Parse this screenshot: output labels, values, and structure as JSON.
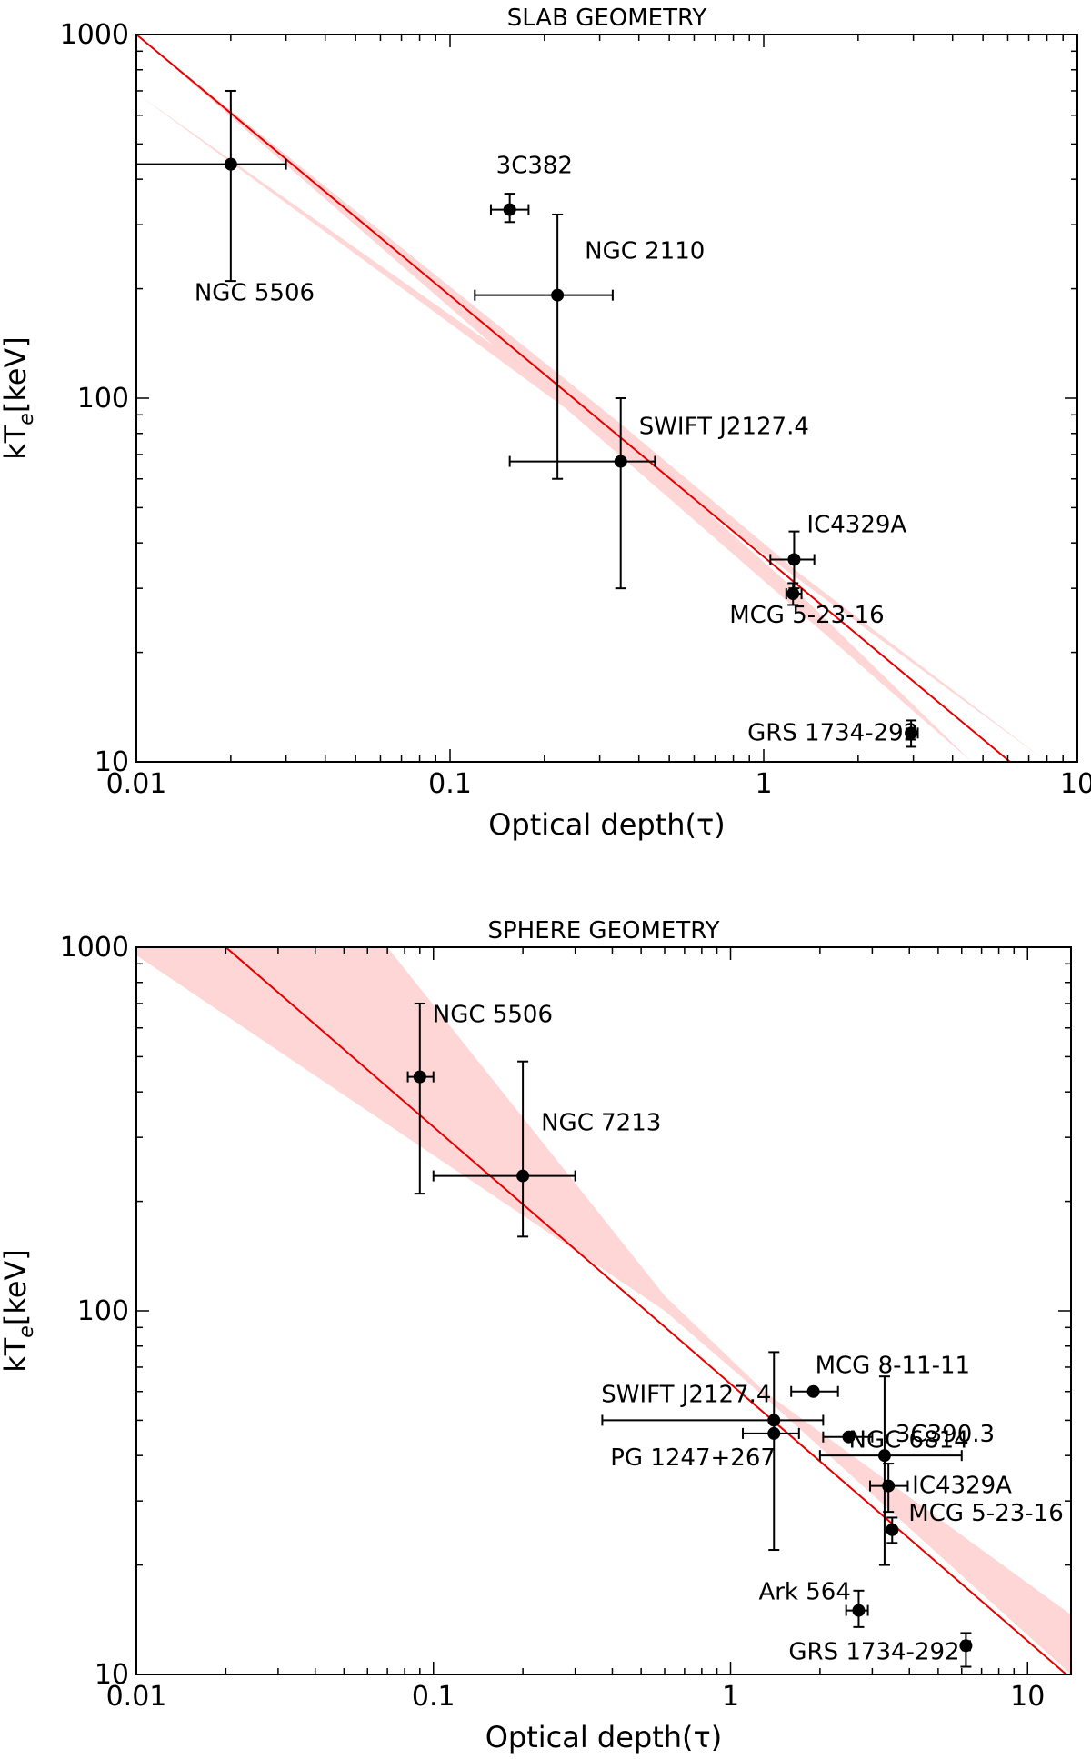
{
  "chart_data": [
    {
      "type": "scatter",
      "title": "SLAB GEOMETRY",
      "xlabel": "Optical depth(τ)",
      "ylabel": "kT_e[keV]",
      "xscale": "log",
      "yscale": "log",
      "xlim": [
        0.01,
        10
      ],
      "ylim": [
        10,
        1000
      ],
      "xticks": [
        0.01,
        0.1,
        1,
        10
      ],
      "xtick_labels": [
        "0.01",
        "0.1",
        "1",
        "10"
      ],
      "yticks": [
        10,
        100,
        1000
      ],
      "ytick_labels": [
        "10",
        "100",
        "1000"
      ],
      "grid": false,
      "fit_line": {
        "x": [
          0.01,
          6.1
        ],
        "y": [
          1000,
          10
        ],
        "color": "#e60000"
      },
      "fit_band": {
        "upper": [
          [
            0.01,
            1000
          ],
          [
            0.35,
            85
          ],
          [
            1.3,
            33
          ],
          [
            8.0,
            10
          ]
        ],
        "lower": [
          [
            0.01,
            690
          ],
          [
            0.35,
            79
          ],
          [
            1.3,
            29
          ],
          [
            4.6,
            10
          ]
        ],
        "color": "#ffc8c8"
      },
      "points": [
        {
          "label": "NGC 5506",
          "x": 0.02,
          "y": 440,
          "xerr": [
            0.01,
            0.03
          ],
          "yerr": [
            210,
            700
          ]
        },
        {
          "label": "3C382",
          "x": 0.155,
          "y": 330,
          "xerr": [
            0.135,
            0.178
          ],
          "yerr": [
            305,
            365
          ]
        },
        {
          "label": "NGC 2110",
          "x": 0.22,
          "y": 192,
          "xerr": [
            0.12,
            0.33
          ],
          "yerr": [
            60,
            320
          ]
        },
        {
          "label": "SWIFT J2127.4",
          "x": 0.35,
          "y": 67,
          "xerr": [
            0.155,
            0.45
          ],
          "yerr": [
            30,
            100
          ]
        },
        {
          "label": "IC4329A",
          "x": 1.25,
          "y": 36,
          "xerr": [
            1.05,
            1.45
          ],
          "yerr": [
            30,
            43
          ]
        },
        {
          "label": "MCG 5-23-16",
          "x": 1.24,
          "y": 29,
          "xerr": [
            1.18,
            1.32
          ],
          "yerr": [
            27,
            31
          ]
        },
        {
          "label": "GRS 1734-292",
          "x": 2.95,
          "y": 12,
          "xerr": [
            2.85,
            3.1
          ],
          "yerr": [
            11,
            13
          ]
        }
      ]
    },
    {
      "type": "scatter",
      "title": "SPHERE GEOMETRY",
      "xlabel": "Optical depth(τ)",
      "ylabel": "kT_e[keV]",
      "xscale": "log",
      "yscale": "log",
      "xlim": [
        0.01,
        14
      ],
      "ylim": [
        10,
        1000
      ],
      "xticks": [
        0.01,
        0.1,
        1,
        10
      ],
      "xtick_labels": [
        "0.01",
        "0.1",
        "1",
        "10"
      ],
      "yticks": [
        10,
        100,
        1000
      ],
      "ytick_labels": [
        "10",
        "100",
        "1000"
      ],
      "grid": false,
      "fit_line": {
        "x": [
          0.02,
          13.5
        ],
        "y": [
          1000,
          10
        ],
        "color": "#e60000"
      },
      "fit_band": {
        "upper": [
          [
            0.01,
            1000
          ],
          [
            0.07,
            1000
          ],
          [
            0.6,
            110
          ],
          [
            1.3,
            60
          ],
          [
            14,
            14.6
          ]
        ],
        "lower": [
          [
            14,
            10
          ],
          [
            1.3,
            58
          ],
          [
            0.6,
            100
          ],
          [
            0.01,
            950
          ]
        ],
        "color": "#ffc8c8"
      },
      "points": [
        {
          "label": "NGC 5506",
          "x": 0.09,
          "y": 440,
          "xerr": [
            0.082,
            0.1
          ],
          "yerr": [
            210,
            700
          ]
        },
        {
          "label": "NGC 7213",
          "x": 0.2,
          "y": 235,
          "xerr": [
            0.1,
            0.3
          ],
          "yerr": [
            160,
            485
          ]
        },
        {
          "label": "MCG 8-11-11",
          "x": 1.9,
          "y": 60,
          "xerr": [
            1.6,
            2.3
          ],
          "yerr": [
            60,
            60
          ]
        },
        {
          "label": "SWIFT J2127.4",
          "x": 1.4,
          "y": 50,
          "xerr": [
            0.37,
            2.05
          ],
          "yerr": [
            22,
            77
          ]
        },
        {
          "label": "PG 1247+267",
          "x": 1.4,
          "y": 46,
          "xerr": [
            1.1,
            1.7
          ],
          "yerr": [
            46,
            46
          ]
        },
        {
          "label": "NGC 6814",
          "x": 2.5,
          "y": 45,
          "xerr": [
            2.05,
            3.0
          ],
          "yerr": [
            45,
            45
          ]
        },
        {
          "label": "3C390.3",
          "x": 3.3,
          "y": 40,
          "xerr": [
            2.0,
            6.0
          ],
          "yerr": [
            20,
            66
          ]
        },
        {
          "label": "IC4329A",
          "x": 3.4,
          "y": 33,
          "xerr": [
            2.95,
            3.95
          ],
          "yerr": [
            28,
            38
          ]
        },
        {
          "label": "MCG 5-23-16",
          "x": 3.5,
          "y": 25,
          "xerr": [
            3.5,
            3.5
          ],
          "yerr": [
            23,
            27
          ]
        },
        {
          "label": "Ark 564",
          "x": 2.7,
          "y": 15,
          "xerr": [
            2.45,
            2.9
          ],
          "yerr": [
            13.5,
            17
          ]
        },
        {
          "label": "GRS 1734-292",
          "x": 6.2,
          "y": 12,
          "xerr": [
            6.05,
            6.4
          ],
          "yerr": [
            10.5,
            13
          ]
        }
      ]
    }
  ]
}
